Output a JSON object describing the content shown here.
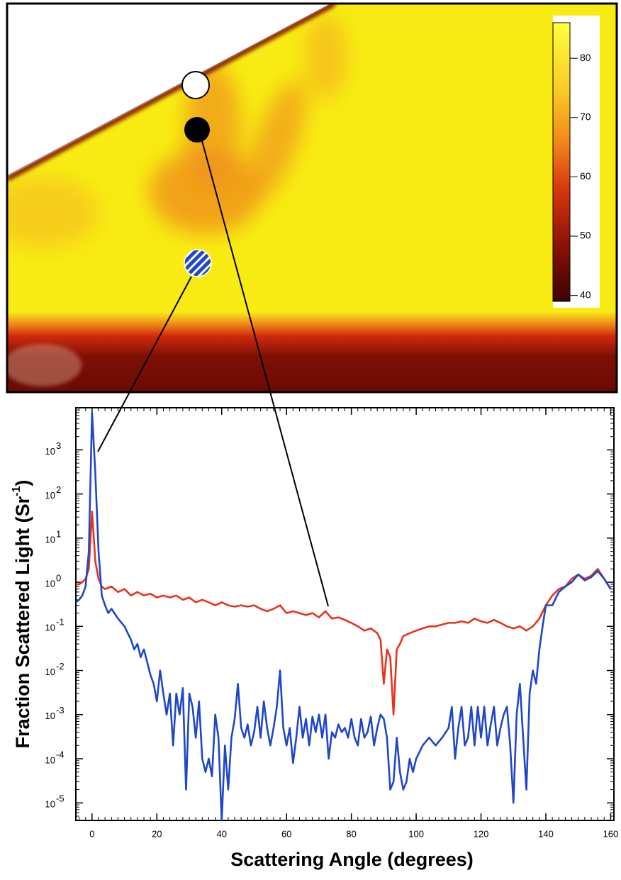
{
  "chart_data": [
    {
      "type": "image",
      "colorbar": {
        "lim": [
          39,
          86
        ],
        "ticks": [
          40,
          50,
          60,
          70,
          80
        ]
      }
    },
    {
      "type": "line",
      "xlabel": "Scattering Angle (degrees)",
      "ylabel": {
        "text": "Fraction Scattered Light (Sr",
        "sup": "-1",
        "end": ")"
      },
      "xlim": [
        -5,
        161
      ],
      "xticks": [
        0,
        20,
        40,
        60,
        80,
        100,
        120,
        140,
        160
      ],
      "ylim": [
        4e-06,
        9000
      ],
      "log_y": true,
      "yticks": [
        {
          "value": 1e-05,
          "label": "10",
          "exp": "-5"
        },
        {
          "value": 0.0001,
          "label": "10",
          "exp": "-4"
        },
        {
          "value": 0.001,
          "label": "10",
          "exp": "-3"
        },
        {
          "value": 0.01,
          "label": "10",
          "exp": "-2"
        },
        {
          "value": 0.1,
          "label": "10",
          "exp": "-1"
        },
        {
          "value": 1,
          "label": "10",
          "exp": "0"
        },
        {
          "value": 10,
          "label": "10",
          "exp": "1"
        },
        {
          "value": 100,
          "label": "10",
          "exp": "2"
        },
        {
          "value": 1000,
          "label": "10",
          "exp": "3"
        }
      ],
      "series": [
        {
          "color": "#e8321e",
          "x": [
            -5,
            -4,
            -3,
            -2,
            -1,
            0,
            1,
            2,
            3,
            4,
            6,
            8,
            10,
            12,
            14,
            16,
            18,
            20,
            22,
            24,
            26,
            28,
            30,
            32,
            34,
            36,
            38,
            40,
            42,
            44,
            46,
            48,
            50,
            52,
            54,
            56,
            58,
            60,
            62,
            64,
            66,
            68,
            70,
            72,
            74,
            76,
            78,
            80,
            82,
            84,
            86,
            88,
            89,
            90,
            91,
            92,
            93,
            94,
            95,
            96,
            98,
            100,
            102,
            104,
            106,
            108,
            110,
            112,
            114,
            116,
            118,
            120,
            122,
            124,
            126,
            128,
            130,
            132,
            134,
            136,
            138,
            140,
            142,
            144,
            146,
            148,
            150,
            152,
            154,
            156,
            158,
            160
          ],
          "values": [
            0.9,
            0.9,
            1.0,
            1.2,
            2,
            40,
            3,
            1.2,
            0.8,
            0.7,
            0.8,
            0.6,
            0.7,
            0.5,
            0.6,
            0.5,
            0.55,
            0.45,
            0.5,
            0.45,
            0.5,
            0.4,
            0.45,
            0.35,
            0.4,
            0.35,
            0.3,
            0.35,
            0.3,
            0.28,
            0.3,
            0.28,
            0.3,
            0.25,
            0.22,
            0.25,
            0.3,
            0.2,
            0.22,
            0.2,
            0.18,
            0.2,
            0.16,
            0.22,
            0.15,
            0.16,
            0.14,
            0.12,
            0.1,
            0.08,
            0.09,
            0.07,
            0.05,
            0.005,
            0.03,
            0.02,
            0.001,
            0.03,
            0.04,
            0.06,
            0.07,
            0.08,
            0.09,
            0.1,
            0.1,
            0.11,
            0.12,
            0.12,
            0.13,
            0.12,
            0.15,
            0.13,
            0.12,
            0.14,
            0.12,
            0.1,
            0.09,
            0.1,
            0.08,
            0.1,
            0.15,
            0.3,
            0.5,
            0.7,
            0.8,
            1.2,
            1.5,
            1.2,
            1.4,
            2.0,
            1.2,
            0.7
          ]
        },
        {
          "color": "#1f47c8",
          "x": [
            -5,
            -4,
            -3,
            -2,
            -1,
            0,
            1,
            2,
            3,
            4,
            5,
            6,
            8,
            10,
            12,
            13,
            14,
            15,
            16,
            18,
            19,
            20,
            21,
            22,
            23,
            24,
            25,
            26,
            27,
            28,
            29,
            30,
            31,
            32,
            33,
            34,
            35,
            36,
            37,
            38,
            39,
            40,
            41,
            42,
            43,
            44,
            45,
            46,
            47,
            48,
            49,
            50,
            51,
            52,
            53,
            54,
            55,
            56,
            57,
            58,
            59,
            60,
            61,
            62,
            63,
            64,
            65,
            66,
            67,
            68,
            69,
            70,
            71,
            72,
            73,
            74,
            75,
            76,
            77,
            78,
            79,
            80,
            81,
            82,
            83,
            84,
            85,
            86,
            87,
            88,
            89,
            90,
            91,
            92,
            93,
            94,
            95,
            96,
            97,
            98,
            99,
            100,
            102,
            104,
            106,
            108,
            110,
            111,
            112,
            113,
            114,
            115,
            116,
            117,
            118,
            119,
            120,
            121,
            122,
            123,
            124,
            125,
            126,
            127,
            128,
            129,
            130,
            131,
            132,
            133,
            134,
            135,
            136,
            137,
            138,
            139,
            140,
            142,
            144,
            146,
            148,
            150,
            152,
            154,
            156,
            158,
            160
          ],
          "values": [
            0.35,
            0.4,
            0.5,
            0.8,
            5,
            7000,
            300,
            5,
            0.5,
            0.3,
            0.2,
            0.25,
            0.15,
            0.1,
            0.05,
            0.03,
            0.04,
            0.02,
            0.03,
            0.008,
            0.005,
            0.002,
            0.01,
            0.003,
            0.001,
            0.003,
            0.0002,
            0.003,
            0.001,
            0.004,
            2e-05,
            0.003,
            0.0015,
            0.0003,
            0.002,
            0.0001,
            5e-05,
            0.0001,
            4e-05,
            0.001,
            0.0003,
            4e-06,
            0.0002,
            2e-05,
            0.0003,
            0.0008,
            0.005,
            0.0005,
            0.0003,
            0.0006,
            0.0002,
            0.0004,
            0.0015,
            0.0003,
            0.002,
            0.0005,
            0.0002,
            0.0005,
            0.0015,
            0.01,
            0.0005,
            0.0002,
            0.0005,
            8e-05,
            0.0003,
            0.0015,
            0.0003,
            0.0008,
            0.0002,
            0.0009,
            0.0004,
            0.001,
            0.0003,
            0.001,
            0.0001,
            0.0004,
            0.0003,
            0.0006,
            0.0004,
            0.0005,
            0.0003,
            0.0008,
            0.0003,
            0.0002,
            0.0008,
            0.0003,
            0.0004,
            0.0009,
            0.0002,
            0.0005,
            0.001,
            0.0008,
            0.0003,
            2e-05,
            3e-05,
            0.0003,
            5e-05,
            2e-05,
            3e-05,
            0.0001,
            5e-05,
            0.0001,
            0.0002,
            0.0003,
            0.0002,
            0.0003,
            0.0005,
            0.0015,
            0.0001,
            0.0005,
            0.0015,
            0.0002,
            0.0003,
            0.0015,
            0.0002,
            0.0015,
            0.0003,
            0.0015,
            0.0002,
            0.0006,
            0.0015,
            0.0002,
            0.0005,
            0.001,
            0.0015,
            0.0002,
            1e-05,
            0.001,
            0.005,
            0.0003,
            2e-05,
            0.003,
            0.01,
            0.005,
            0.03,
            0.1,
            0.3,
            0.3,
            0.6,
            0.8,
            1.0,
            1.5,
            1.1,
            1.3,
            1.8,
            1.2,
            0.7
          ]
        }
      ]
    }
  ]
}
